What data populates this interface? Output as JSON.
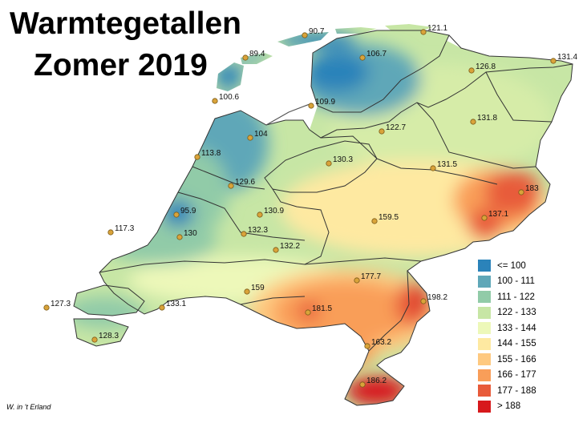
{
  "title": {
    "line1": "Warmtegetallen",
    "line2": "Zomer 2019"
  },
  "credit": "W. in 't Erland",
  "legend": [
    {
      "label": "<= 100",
      "color": "#2b83ba"
    },
    {
      "label": "100 - 111",
      "color": "#5fa7b8"
    },
    {
      "label": "111 - 122",
      "color": "#91cba8"
    },
    {
      "label": "122 - 133",
      "color": "#c7e6a5"
    },
    {
      "label": "133 - 144",
      "color": "#edf8b9"
    },
    {
      "label": "144 - 155",
      "color": "#fee9a1"
    },
    {
      "label": "155 - 166",
      "color": "#fec980"
    },
    {
      "label": "166 - 177",
      "color": "#f99e59"
    },
    {
      "label": "177 - 188",
      "color": "#e85b3a"
    },
    {
      "label": "> 188",
      "color": "#d7191c"
    }
  ],
  "stations": [
    {
      "label": "90.7"
    },
    {
      "label": "121.1"
    },
    {
      "label": "89.4"
    },
    {
      "label": "106.7"
    },
    {
      "label": "131.4"
    },
    {
      "label": "126.8"
    },
    {
      "label": "100.6"
    },
    {
      "label": "109.9"
    },
    {
      "label": "131.8"
    },
    {
      "label": "122.7"
    },
    {
      "label": "104"
    },
    {
      "label": "113.8"
    },
    {
      "label": "130.3"
    },
    {
      "label": "131.5"
    },
    {
      "label": "129.6"
    },
    {
      "label": "183"
    },
    {
      "label": "95.9"
    },
    {
      "label": "130.9"
    },
    {
      "label": "159.5"
    },
    {
      "label": "137.1"
    },
    {
      "label": "117.3"
    },
    {
      "label": "130"
    },
    {
      "label": "132.3"
    },
    {
      "label": "132.2"
    },
    {
      "label": "177.7"
    },
    {
      "label": "159"
    },
    {
      "label": "198.2"
    },
    {
      "label": "127.3"
    },
    {
      "label": "133.1"
    },
    {
      "label": "181.5"
    },
    {
      "label": "128.3"
    },
    {
      "label": "163.2"
    },
    {
      "label": "186.2"
    }
  ]
}
